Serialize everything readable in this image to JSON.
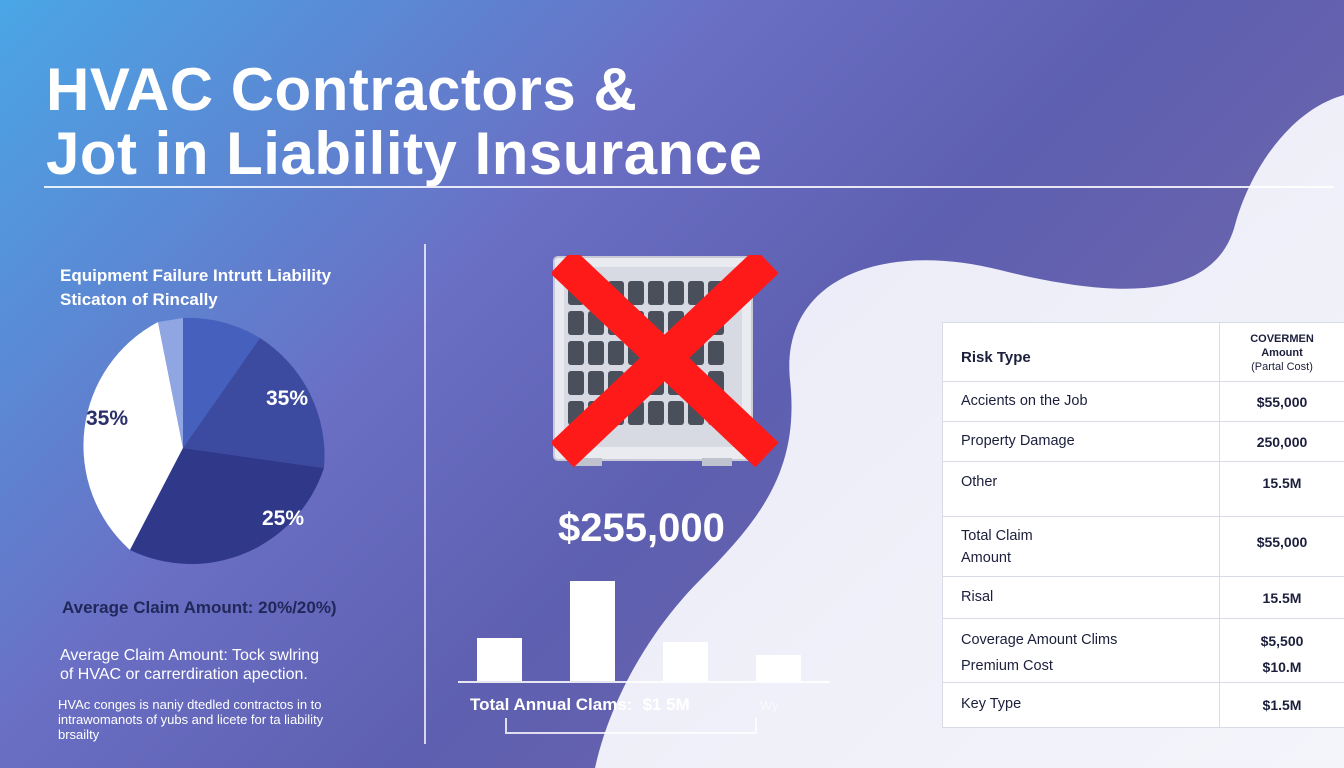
{
  "title": {
    "line1": "HVAC Contractors &",
    "line2": "Jot in Liability Insurance"
  },
  "left_panel": {
    "heading_line1": "Equipment Failure Intrutt Liability",
    "heading_line2": "Sticaton of Rincally",
    "pie": {
      "slices": [
        {
          "label": "35%",
          "color": "#ffffff"
        },
        {
          "label": "",
          "color": "#8fa6e2"
        },
        {
          "label": "",
          "color": "#3f58b4"
        },
        {
          "label": "35%",
          "color": "#3a4598"
        },
        {
          "label": "25%",
          "color": "#2f3684"
        }
      ]
    },
    "avg_claim_1": "Average Claim Amount: 20%/20%)",
    "avg_claim_2_line1": "Average Claim Amount: Tock swlring",
    "avg_claim_2_line2": "of HVAC or carrerdiration apection.",
    "note_line1": "HVAc conges is naniy dtedled contractos in to",
    "note_line2": "intrawomanots of yubs and licete for ta liability",
    "note_line3": "brsailty"
  },
  "center_panel": {
    "unit_icon": "ac-unit-crossed-out-icon",
    "amount": "$255,000",
    "bars": [
      0.43,
      1.0,
      0.39,
      0.26
    ],
    "annual_label": "Total Annual Clams:",
    "annual_value": "$1 5M",
    "annual_extra": "Wy"
  },
  "table": {
    "header": {
      "col1": "Risk Type",
      "col2_line1": "COVERMEN",
      "col2_line2": "Amount",
      "col2_line3": "(Partal Cost)"
    },
    "rows": [
      {
        "c1a": "Accients on the Job",
        "c1b": "",
        "c2a": "$55,000",
        "c2b": ""
      },
      {
        "c1a": "Property Damage",
        "c1b": "",
        "c2a": "250,000",
        "c2b": ""
      },
      {
        "c1a": "Other",
        "c1b": "",
        "c2a": "15.5M",
        "c2b": ""
      },
      {
        "c1a": "Total Claim",
        "c1b": "Amount",
        "c2a": "$55,000",
        "c2b": ""
      },
      {
        "c1a": "Risal",
        "c1b": "",
        "c2a": "15.5M",
        "c2b": ""
      },
      {
        "c1a": "Coverage Amount Clims",
        "c1b": "Premium Cost",
        "c2a": "$5,500",
        "c2b": "$10.M"
      },
      {
        "c1a": "Key Type",
        "c1b": "",
        "c2a": "$1.5M",
        "c2b": ""
      }
    ]
  },
  "colors": {
    "background_start": "#4aa6e6",
    "background_end": "#6d66ad",
    "accent_red": "#ff1a1a",
    "wave": "#eef0f8"
  }
}
